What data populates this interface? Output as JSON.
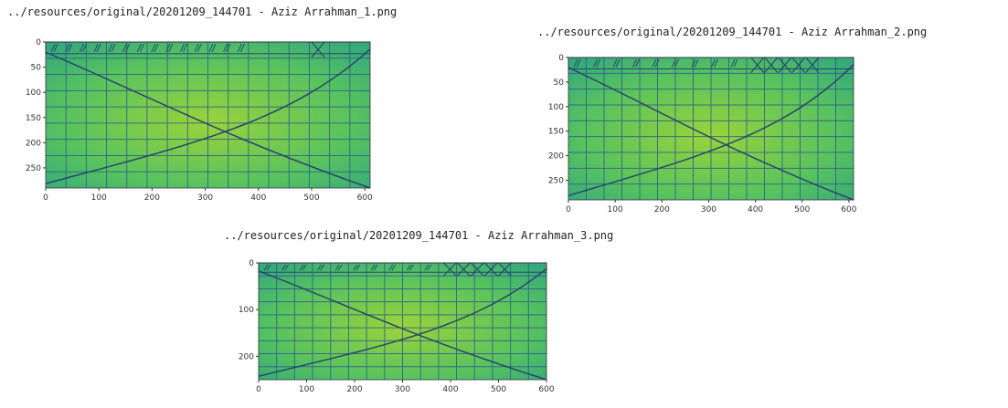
{
  "output_cell": {
    "figures": [
      {
        "title": "../resources/original/20201209_144701 - Aziz Arrahman_1.png",
        "x_ticks": [
          "0",
          "100",
          "200",
          "300",
          "400",
          "500",
          "600"
        ],
        "y_ticks": [
          "0",
          "50",
          "100",
          "150",
          "200",
          "250"
        ]
      },
      {
        "title": "../resources/original/20201209_144701 - Aziz Arrahman_2.png",
        "x_ticks": [
          "0",
          "100",
          "200",
          "300",
          "400",
          "500",
          "600"
        ],
        "y_ticks": [
          "0",
          "50",
          "100",
          "150",
          "200",
          "250"
        ]
      },
      {
        "title": "../resources/original/20201209_144701 - Aziz Arrahman_3.png",
        "x_ticks": [
          "0",
          "100",
          "200",
          "300",
          "400",
          "500",
          "600"
        ],
        "y_ticks": [
          "0",
          "100",
          "200"
        ]
      }
    ],
    "colors": {
      "image_fill_light": "#9bd33a",
      "image_fill_mid": "#56c260",
      "image_fill_edge": "#35a97a",
      "grid_line": "#2a5a8a",
      "curve": "#27476f"
    }
  }
}
